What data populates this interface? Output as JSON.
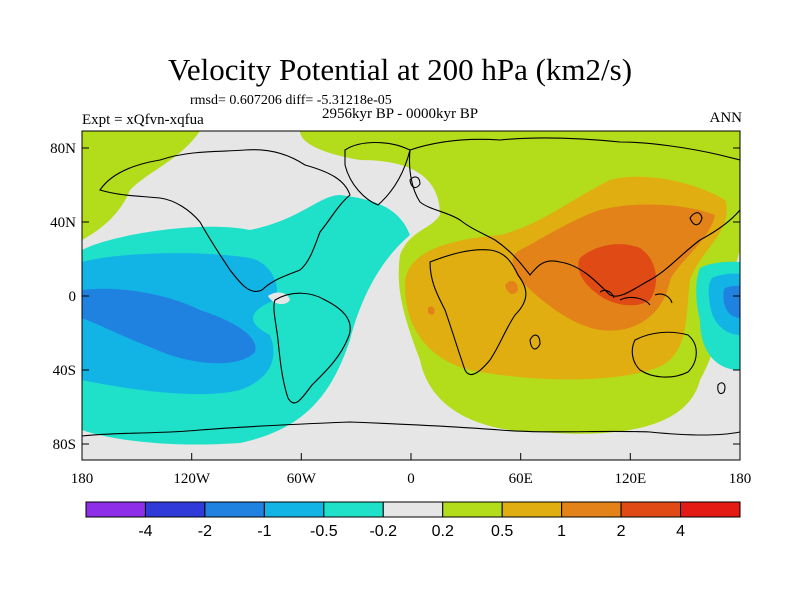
{
  "title": "Velocity Potential at 200 hPa (km2/s)",
  "stats": "rmsd= 0.607206 diff= -5.31218e-05",
  "period": "2956kyr BP - 0000kyr BP",
  "experiment": "Expt = xQfvn-xqfua",
  "season": "ANN",
  "lat_labels": [
    "80N",
    "40N",
    "0",
    "40S",
    "80S"
  ],
  "lon_labels": [
    "180",
    "120W",
    "60W",
    "0",
    "60E",
    "120E",
    "180"
  ],
  "colorbar": {
    "colors": [
      "#8f2ee8",
      "#2f3ad8",
      "#1f82e0",
      "#12b4e6",
      "#1fe0c8",
      "#e6e6e6",
      "#b3dc1b",
      "#e0ae10",
      "#e28218",
      "#e04a14",
      "#e41a14"
    ],
    "labels": [
      "-4",
      "-2",
      "-1",
      "-0.5",
      "-0.2",
      "0.2",
      "0.5",
      "1",
      "2",
      "4"
    ]
  },
  "map_colors": {
    "background": "#e6e6e6",
    "negative_weak": "#1fe0c8",
    "negative_mid": "#12b4e6",
    "negative_strong": "#1f82e0",
    "positive_weak": "#b3dc1b",
    "positive_mid": "#e0ae10",
    "positive_strong": "#e28218",
    "positive_max": "#e04a14"
  }
}
